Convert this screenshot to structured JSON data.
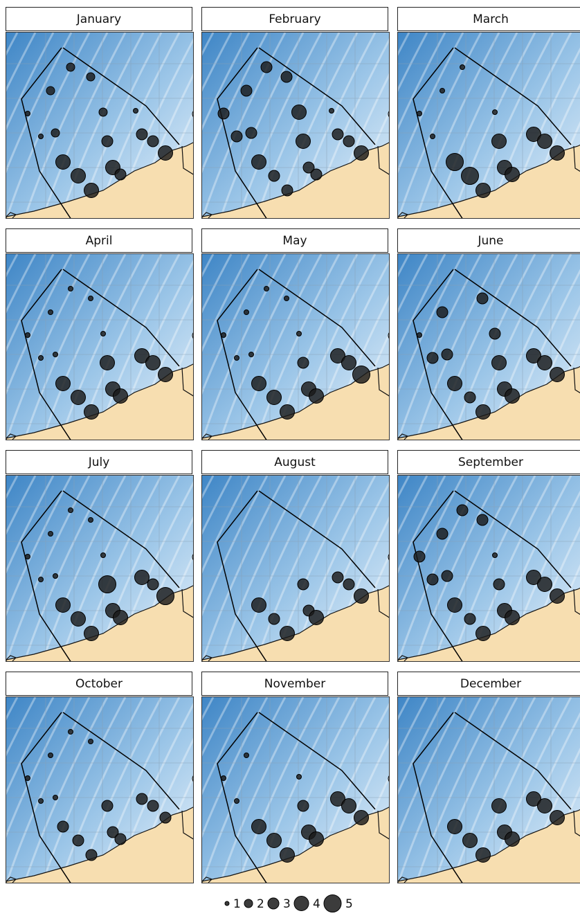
{
  "colors": {
    "sea_deep": "#3f86c6",
    "sea_light": "#eaf3fb",
    "land": "#f7deb0",
    "boundary": "#000000",
    "marker": "#1a1a1a"
  },
  "grid": "on",
  "legend": {
    "position": "bottom-center",
    "items": [
      {
        "size": 1,
        "label": "1"
      },
      {
        "size": 2,
        "label": "2"
      },
      {
        "size": 3,
        "label": "3"
      },
      {
        "size": 4,
        "label": "4"
      },
      {
        "size": 5,
        "label": "5"
      }
    ]
  },
  "months": [
    {
      "name": "January",
      "sites": [
        2,
        2,
        2,
        1,
        1,
        2,
        2,
        3,
        4,
        4,
        4,
        4,
        1,
        3,
        3,
        4,
        3
      ]
    },
    {
      "name": "February",
      "sites": [
        3,
        3,
        3,
        3,
        3,
        3,
        4,
        4,
        4,
        3,
        3,
        3,
        1,
        3,
        3,
        4,
        3
      ]
    },
    {
      "name": "March",
      "sites": [
        1,
        1,
        0,
        1,
        1,
        0,
        1,
        4,
        5,
        5,
        4,
        4,
        0,
        4,
        4,
        4,
        4
      ]
    },
    {
      "name": "April",
      "sites": [
        1,
        1,
        1,
        1,
        1,
        1,
        1,
        4,
        4,
        4,
        4,
        4,
        0,
        4,
        4,
        4,
        4
      ]
    },
    {
      "name": "May",
      "sites": [
        1,
        1,
        1,
        1,
        1,
        1,
        1,
        3,
        4,
        4,
        4,
        4,
        0,
        4,
        4,
        5,
        4
      ]
    },
    {
      "name": "June",
      "sites": [
        0,
        3,
        3,
        1,
        3,
        3,
        3,
        4,
        4,
        3,
        4,
        4,
        0,
        4,
        4,
        4,
        4
      ]
    },
    {
      "name": "July",
      "sites": [
        1,
        1,
        1,
        1,
        1,
        1,
        1,
        5,
        4,
        4,
        4,
        4,
        0,
        4,
        3,
        5,
        4
      ]
    },
    {
      "name": "August",
      "sites": [
        0,
        0,
        0,
        0,
        0,
        0,
        0,
        3,
        4,
        3,
        4,
        3,
        0,
        3,
        3,
        4,
        4
      ]
    },
    {
      "name": "September",
      "sites": [
        3,
        3,
        3,
        3,
        3,
        3,
        1,
        3,
        4,
        3,
        4,
        4,
        0,
        4,
        4,
        4,
        4
      ]
    },
    {
      "name": "October",
      "sites": [
        1,
        1,
        1,
        1,
        1,
        1,
        0,
        3,
        3,
        3,
        3,
        3,
        0,
        3,
        3,
        3,
        3
      ]
    },
    {
      "name": "November",
      "sites": [
        0,
        1,
        0,
        1,
        1,
        0,
        1,
        3,
        4,
        4,
        4,
        4,
        0,
        4,
        4,
        4,
        4
      ]
    },
    {
      "name": "December",
      "sites": [
        0,
        0,
        0,
        0,
        0,
        0,
        0,
        4,
        4,
        4,
        4,
        4,
        0,
        4,
        4,
        4,
        4
      ]
    }
  ]
}
